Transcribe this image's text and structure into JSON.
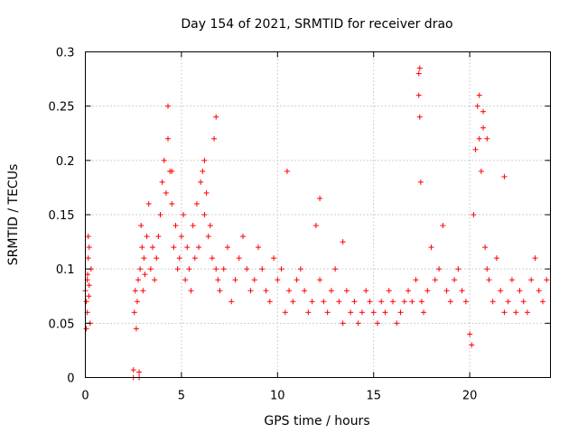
{
  "chart_data": {
    "type": "scatter",
    "title": "Day 154 of 2021, SRMTID for receiver drao",
    "xlabel": "GPS time / hours",
    "ylabel": "SRMTID / TECUs",
    "xlim": [
      0,
      24.2
    ],
    "ylim": [
      0,
      0.3
    ],
    "xticks": [
      0,
      5,
      10,
      15,
      20
    ],
    "yticks": [
      0,
      0.05,
      0.1,
      0.15,
      0.2,
      0.25,
      0.3
    ],
    "xtick_labels": [
      "0",
      "5",
      "10",
      "15",
      "20"
    ],
    "ytick_labels": [
      "0",
      "0.05",
      "0.1",
      "0.15",
      "0.2",
      "0.25",
      "0.3"
    ],
    "grid": true,
    "marker": "+",
    "color": "#ff0000",
    "series": [
      {
        "name": "SRMTID",
        "x": [
          0.0,
          0.05,
          0.1,
          0.15,
          0.2,
          0.25,
          0.3,
          0.1,
          0.15,
          0.2,
          0.05,
          0.12,
          0.18,
          2.5,
          2.5,
          2.8,
          2.8,
          2.55,
          2.6,
          2.65,
          2.7,
          2.75,
          2.85,
          2.9,
          2.95,
          3.0,
          3.05,
          3.1,
          3.2,
          3.3,
          3.4,
          3.5,
          3.6,
          3.7,
          3.8,
          3.9,
          4.0,
          4.1,
          4.2,
          4.3,
          4.4,
          4.5,
          4.6,
          4.7,
          4.8,
          4.9,
          5.0,
          5.1,
          5.2,
          5.3,
          5.4,
          5.5,
          5.6,
          5.7,
          5.8,
          5.9,
          6.0,
          6.1,
          6.2,
          6.3,
          6.4,
          6.5,
          6.6,
          6.7,
          6.8,
          6.9,
          7.0,
          7.2,
          7.4,
          7.6,
          7.8,
          8.0,
          8.2,
          8.4,
          8.6,
          8.8,
          9.0,
          9.2,
          9.4,
          9.6,
          9.8,
          10.0,
          10.2,
          10.4,
          10.6,
          10.8,
          11.0,
          11.2,
          11.4,
          11.6,
          11.8,
          12.0,
          12.2,
          12.4,
          12.6,
          12.8,
          13.0,
          13.2,
          13.4,
          13.6,
          13.8,
          14.0,
          14.2,
          14.4,
          14.6,
          14.8,
          15.0,
          15.2,
          15.4,
          15.6,
          15.8,
          16.0,
          16.2,
          16.4,
          16.6,
          16.8,
          17.0,
          17.2,
          17.35,
          17.4,
          17.45,
          17.5,
          17.6,
          17.8,
          18.0,
          18.2,
          18.4,
          18.6,
          18.8,
          19.0,
          19.2,
          19.4,
          19.6,
          19.8,
          20.0,
          20.1,
          20.2,
          20.3,
          20.4,
          20.5,
          20.6,
          20.7,
          20.8,
          20.9,
          21.0,
          21.2,
          21.4,
          21.6,
          21.8,
          22.0,
          22.2,
          22.4,
          22.6,
          22.8,
          23.0,
          23.2,
          23.4,
          23.6,
          23.8,
          24.0,
          4.3,
          4.5,
          6.2,
          6.8,
          10.5,
          12.2,
          13.4,
          17.4,
          17.35,
          20.5,
          20.7,
          20.9,
          21.8
        ],
        "y": [
          0.08,
          0.07,
          0.09,
          0.11,
          0.12,
          0.05,
          0.1,
          0.06,
          0.13,
          0.085,
          0.045,
          0.095,
          0.075,
          0.0,
          0.007,
          0.0,
          0.005,
          0.06,
          0.08,
          0.045,
          0.07,
          0.09,
          0.1,
          0.14,
          0.12,
          0.08,
          0.11,
          0.095,
          0.13,
          0.16,
          0.1,
          0.12,
          0.09,
          0.11,
          0.13,
          0.15,
          0.18,
          0.2,
          0.17,
          0.22,
          0.19,
          0.16,
          0.12,
          0.14,
          0.1,
          0.11,
          0.13,
          0.15,
          0.09,
          0.12,
          0.1,
          0.08,
          0.14,
          0.11,
          0.16,
          0.12,
          0.18,
          0.19,
          0.15,
          0.17,
          0.13,
          0.14,
          0.11,
          0.22,
          0.1,
          0.09,
          0.08,
          0.1,
          0.12,
          0.07,
          0.09,
          0.11,
          0.13,
          0.1,
          0.08,
          0.09,
          0.12,
          0.1,
          0.08,
          0.07,
          0.11,
          0.09,
          0.1,
          0.06,
          0.08,
          0.07,
          0.09,
          0.1,
          0.08,
          0.06,
          0.07,
          0.14,
          0.09,
          0.07,
          0.06,
          0.08,
          0.1,
          0.07,
          0.05,
          0.08,
          0.06,
          0.07,
          0.05,
          0.06,
          0.08,
          0.07,
          0.06,
          0.05,
          0.07,
          0.06,
          0.08,
          0.07,
          0.05,
          0.06,
          0.07,
          0.08,
          0.07,
          0.09,
          0.28,
          0.24,
          0.18,
          0.07,
          0.06,
          0.08,
          0.12,
          0.09,
          0.1,
          0.14,
          0.08,
          0.07,
          0.09,
          0.1,
          0.08,
          0.07,
          0.04,
          0.03,
          0.15,
          0.21,
          0.25,
          0.22,
          0.19,
          0.23,
          0.12,
          0.1,
          0.09,
          0.07,
          0.11,
          0.08,
          0.06,
          0.07,
          0.09,
          0.06,
          0.08,
          0.07,
          0.06,
          0.09,
          0.11,
          0.08,
          0.07,
          0.09,
          0.25,
          0.19,
          0.2,
          0.24,
          0.19,
          0.165,
          0.125,
          0.285,
          0.26,
          0.26,
          0.245,
          0.22,
          0.185
        ]
      }
    ]
  }
}
